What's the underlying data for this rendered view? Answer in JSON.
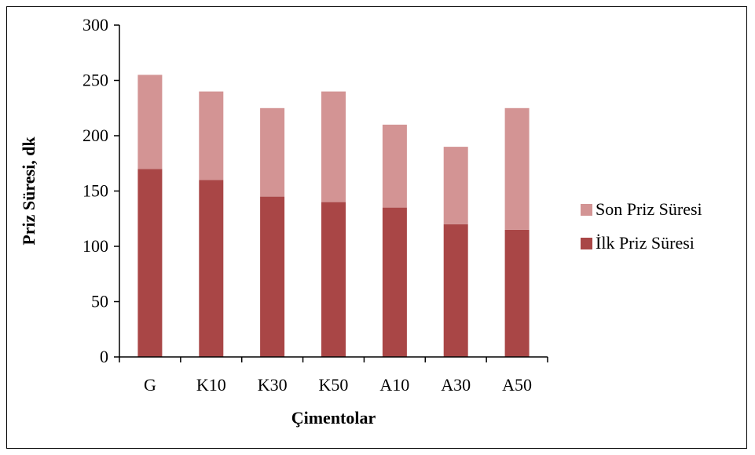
{
  "chart_data": {
    "type": "bar",
    "stacked": true,
    "categories": [
      "G",
      "K10",
      "K30",
      "K50",
      "A10",
      "A30",
      "A50"
    ],
    "series": [
      {
        "name": "İlk Priz Süresi",
        "color": "#A94646",
        "values": [
          170,
          160,
          145,
          140,
          135,
          120,
          115
        ]
      },
      {
        "name": "Son Priz Süresi",
        "color": "#D39494",
        "values": [
          85,
          80,
          80,
          100,
          75,
          70,
          110
        ]
      }
    ],
    "totals": [
      255,
      240,
      225,
      240,
      210,
      190,
      225
    ],
    "xlabel": "Çimentolar",
    "ylabel": "Priz Süresi, dk",
    "ylim": [
      0,
      300
    ],
    "yticks": [
      0,
      50,
      100,
      150,
      200,
      250,
      300
    ],
    "grid": false,
    "legend_position": "right",
    "legend_order": [
      "Son Priz Süresi",
      "İlk Priz Süresi"
    ]
  }
}
